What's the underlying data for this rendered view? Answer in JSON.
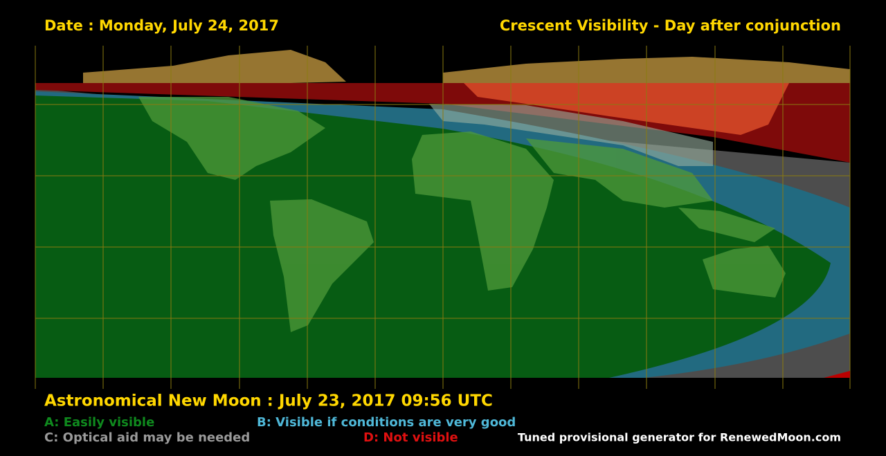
{
  "header": {
    "date": "Date : Monday, July 24, 2017",
    "title": "Crescent Visibility - Day after conjunction"
  },
  "footer": {
    "new_moon": "Astronomical New Moon : July 23, 2017 09:56 UTC",
    "legend": [
      {
        "label": "A: Easily visible",
        "color": "#0f8a1e"
      },
      {
        "label": "B: Visible if conditions are very good",
        "color": "#4fb8d8"
      },
      {
        "label": "C: Optical aid may be needed",
        "color": "#9a9a9a"
      },
      {
        "label": "D: Not visible",
        "color": "#e01010"
      }
    ],
    "credit": "Tuned provisional generator for RenewedMoon.com"
  }
}
